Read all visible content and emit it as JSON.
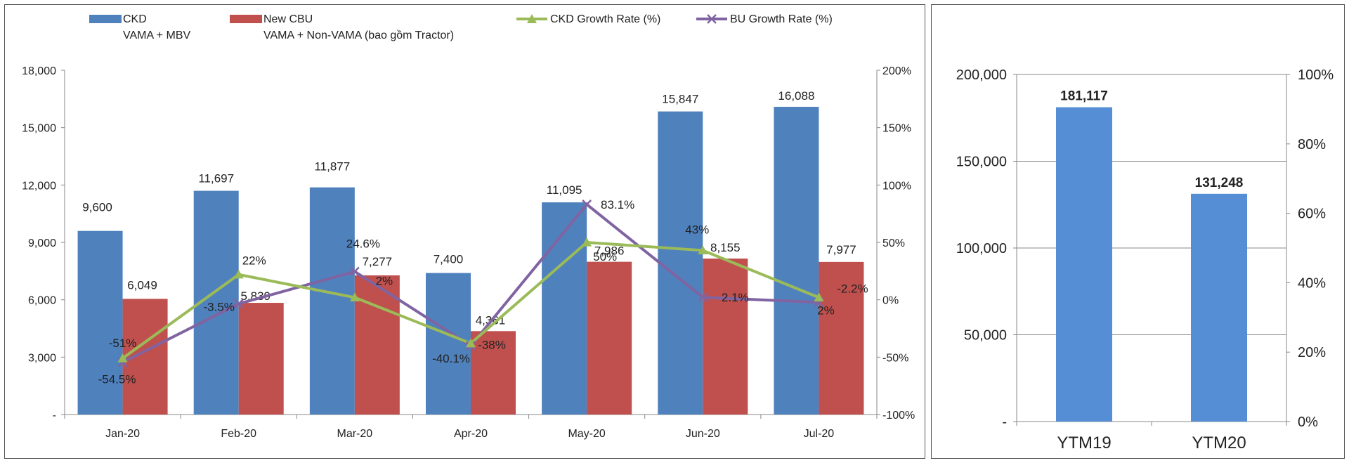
{
  "chart_data": [
    {
      "type": "bar+line",
      "categories": [
        "Jan-20",
        "Feb-20",
        "Mar-20",
        "Apr-20",
        "May-20",
        "Jun-20",
        "Jul-20"
      ],
      "series": [
        {
          "name": "CKD",
          "sub": "VAMA + MBV",
          "kind": "bar",
          "axis": "left",
          "color": "#4f81bd",
          "values": [
            9600,
            11697,
            11877,
            7400,
            11095,
            15847,
            16088
          ],
          "labels": [
            "9,600",
            "11,697",
            "11,877",
            "7,400",
            "11,095",
            "15,847",
            "16,088"
          ]
        },
        {
          "name": "New CBU",
          "sub": "VAMA + Non-VAMA (bao gồm Tractor)",
          "kind": "bar",
          "axis": "left",
          "color": "#c0504d",
          "values": [
            6049,
            5839,
            7277,
            4361,
            7986,
            8155,
            7977
          ],
          "labels": [
            "6,049",
            "5,839",
            "7,277",
            "4,361",
            "7,986",
            "8,155",
            "7,977"
          ]
        },
        {
          "name": "CKD Growth Rate (%)",
          "kind": "line",
          "axis": "right",
          "color": "#9bbb59",
          "marker": "triangle",
          "values": [
            -51,
            22,
            2,
            -38,
            50,
            43,
            2
          ],
          "labels": [
            "-51%",
            "22%",
            "2%",
            "-38%",
            "50%",
            "43%",
            "2%"
          ]
        },
        {
          "name": "BU Growth Rate (%)",
          "kind": "line",
          "axis": "right",
          "color": "#8064a2",
          "marker": "x",
          "values": [
            -54.5,
            -3.5,
            24.6,
            -40.1,
            83.1,
            2.1,
            -2.2
          ],
          "labels": [
            "-54.5%",
            "-3.5%",
            "24.6%",
            "-40.1%",
            "83.1%",
            "2.1%",
            "-2.2%"
          ]
        }
      ],
      "y_left": {
        "min": 0,
        "max": 18000,
        "ticks": [
          "-",
          "3,000",
          "6,000",
          "9,000",
          "12,000",
          "15,000",
          "18,000"
        ]
      },
      "y_right": {
        "min": -100,
        "max": 200,
        "ticks": [
          "-100%",
          "-50%",
          "0%",
          "50%",
          "100%",
          "150%",
          "200%"
        ]
      },
      "legend_position": "top",
      "grid": false
    },
    {
      "type": "bar",
      "categories": [
        "YTM19",
        "YTM20"
      ],
      "values": [
        181117,
        131248
      ],
      "labels": [
        "181,117",
        "131,248"
      ],
      "color": "#558ed5",
      "y_left": {
        "min": 0,
        "max": 200000,
        "ticks": [
          "-",
          "50,000",
          "100,000",
          "150,000",
          "200,000"
        ]
      },
      "y_right": {
        "min": 0,
        "max": 100,
        "ticks": [
          "0%",
          "20%",
          "40%",
          "60%",
          "80%",
          "100%"
        ]
      },
      "grid": true
    }
  ]
}
